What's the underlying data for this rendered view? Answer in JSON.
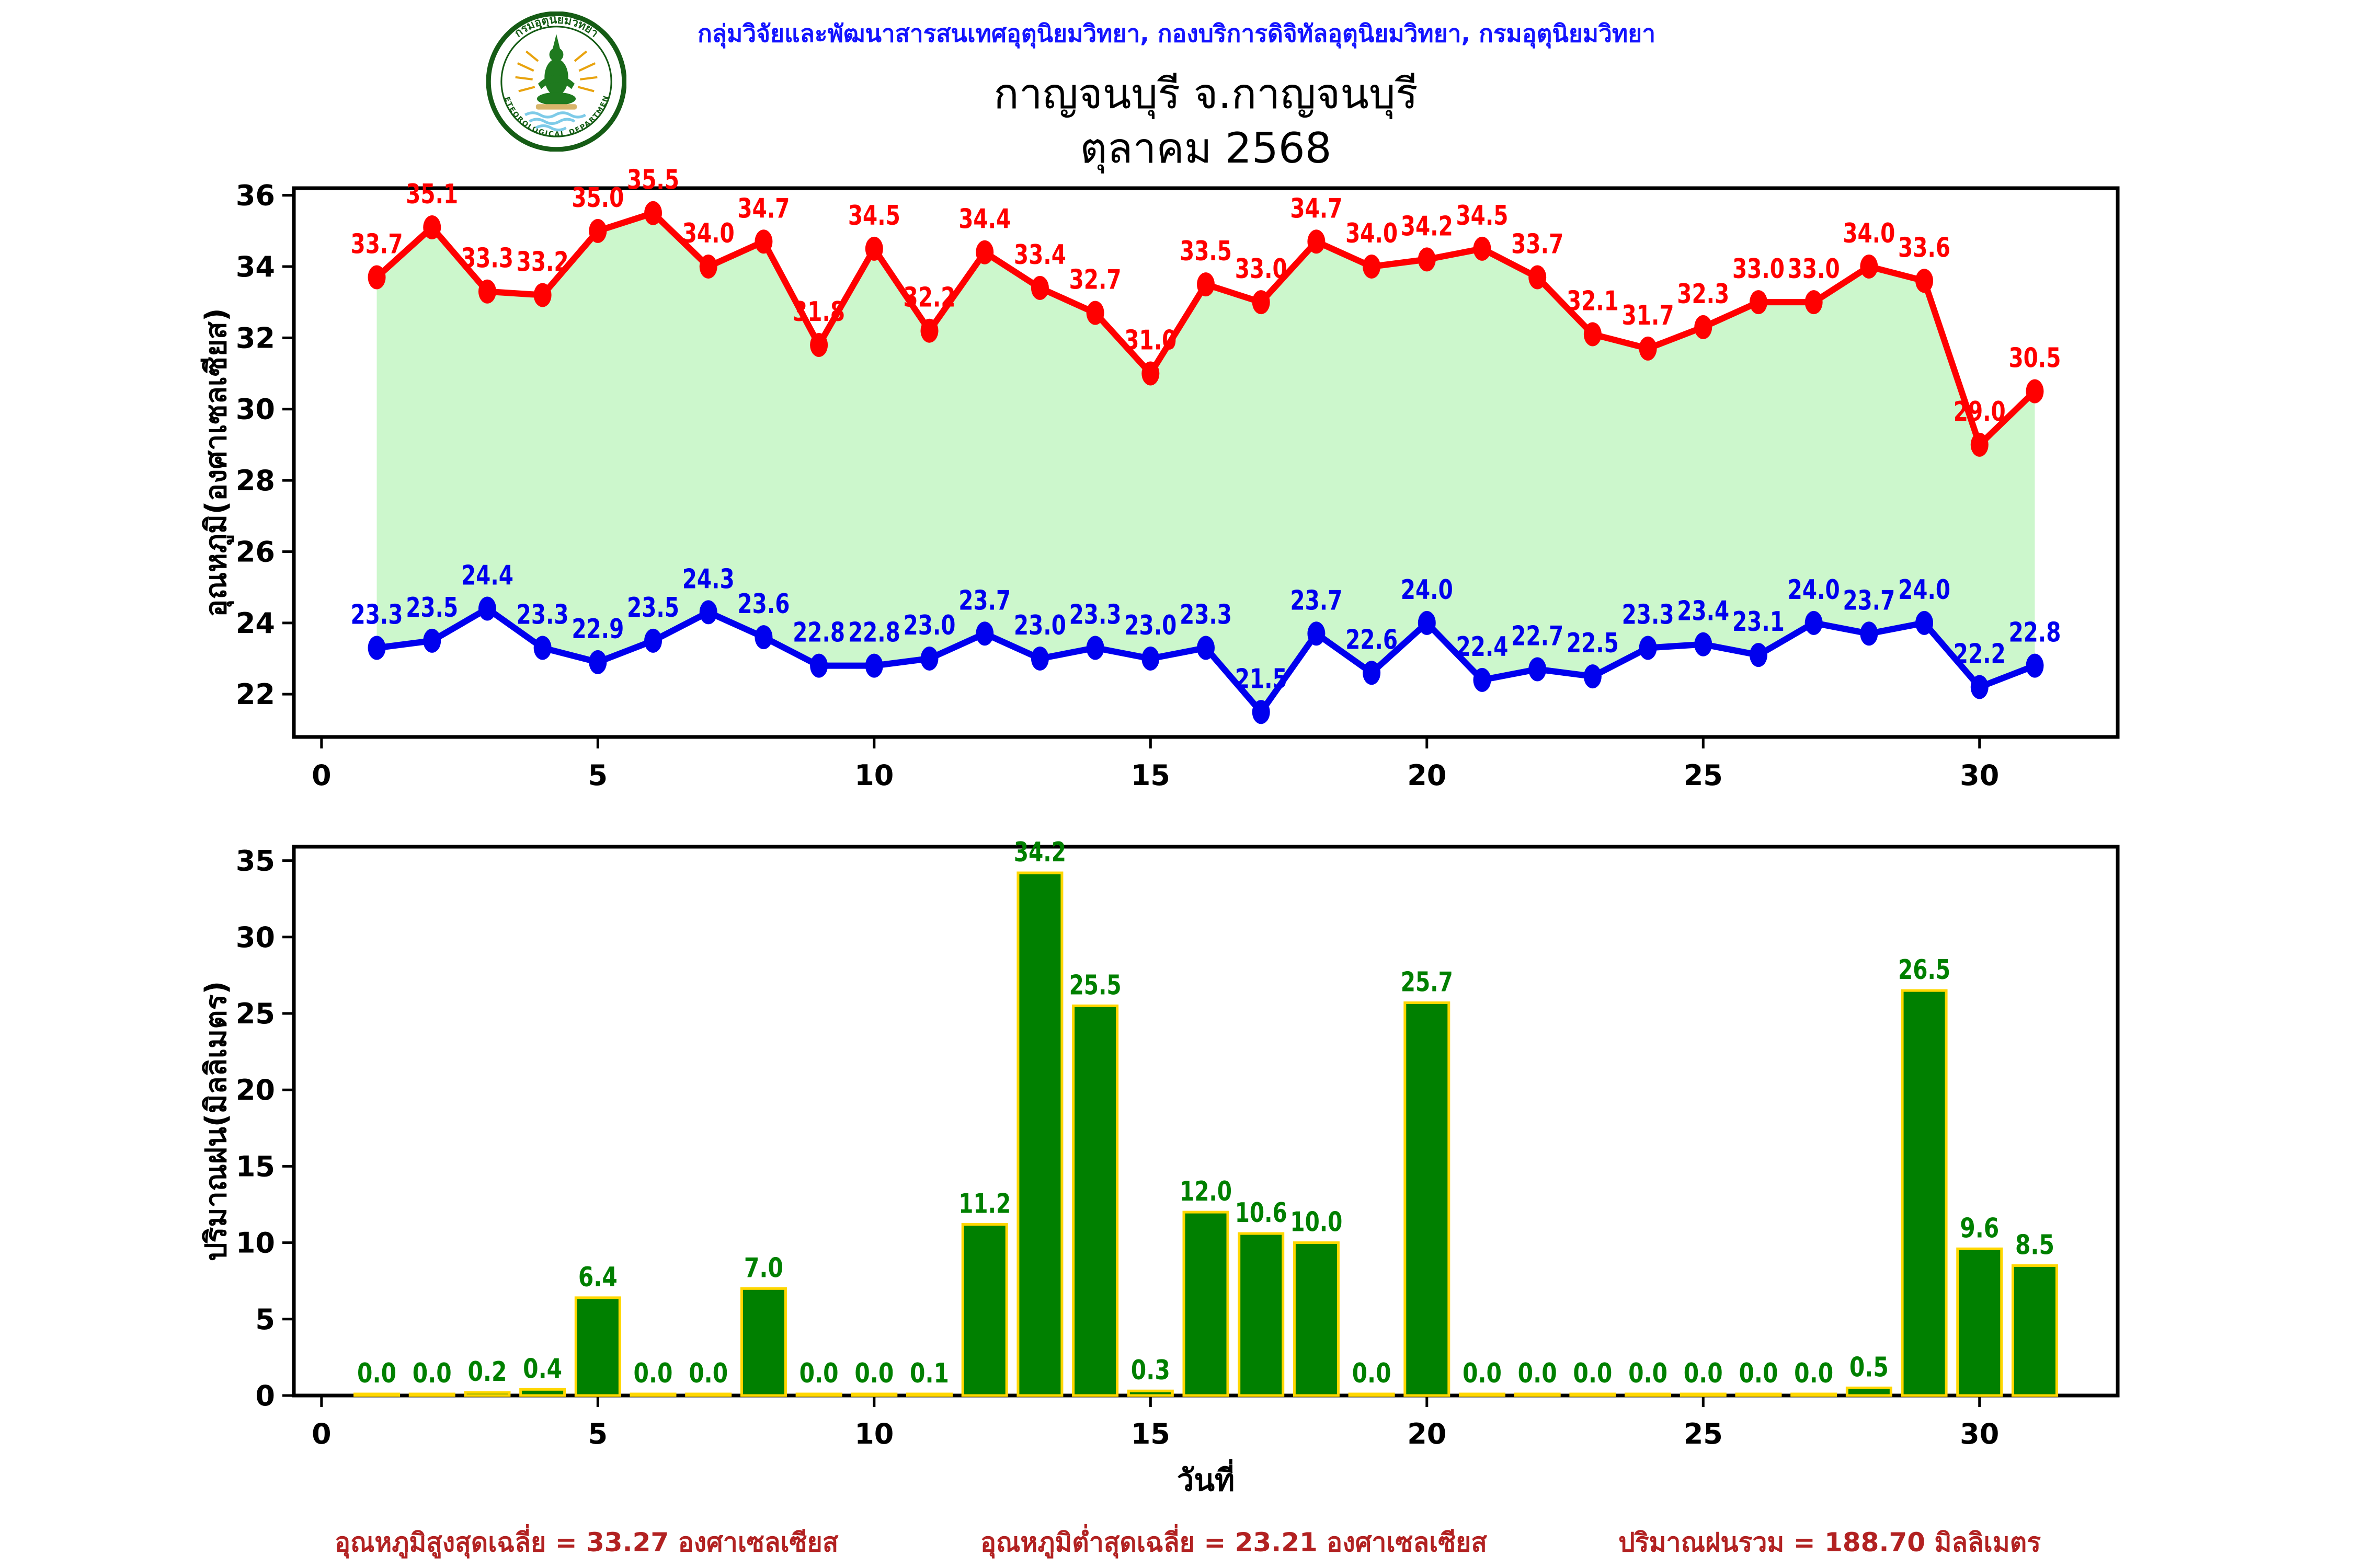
{
  "header": {
    "agency_line": "กลุ่มวิจัยและพัฒนาสารสนเทศอุตุนิยมวิทยา, กองบริการดิจิทัลอุตุนิยมวิทยา, กรมอุตุนิยมวิทยา",
    "title": "กาญจนบุรี จ.กาญจนบุรี",
    "subtitle": "ตุลาคม 2568",
    "logo": {
      "top_text": "กรมอุตุนิยมวิทยา",
      "bottom_text": "METEOROLOGICAL DEPARTMENT"
    }
  },
  "colors": {
    "header_text": "#1414ff",
    "max_line": "#ff0000",
    "min_line": "#0000ee",
    "range_fill": "#ccf7cc",
    "bar_fill": "#008000",
    "bar_edge": "#ffd700",
    "bar_label": "#008000",
    "footer_text": "#b22222",
    "axis": "#000000"
  },
  "chart_data": [
    {
      "type": "line",
      "x": [
        1,
        2,
        3,
        4,
        5,
        6,
        7,
        8,
        9,
        10,
        11,
        12,
        13,
        14,
        15,
        16,
        17,
        18,
        19,
        20,
        21,
        22,
        23,
        24,
        25,
        26,
        27,
        28,
        29,
        30,
        31
      ],
      "series": [
        {
          "name": "max-temperature",
          "color": "#ff0000",
          "values": [
            33.7,
            35.1,
            33.3,
            33.2,
            35.0,
            35.5,
            34.0,
            34.7,
            31.8,
            34.5,
            32.2,
            34.4,
            33.4,
            32.7,
            31.0,
            33.5,
            33.0,
            34.7,
            34.0,
            34.2,
            34.5,
            33.7,
            32.1,
            31.7,
            32.3,
            33.0,
            33.0,
            34.0,
            33.6,
            29.0,
            30.5
          ]
        },
        {
          "name": "min-temperature",
          "color": "#0000ee",
          "values": [
            23.3,
            23.5,
            24.4,
            23.3,
            22.9,
            23.5,
            24.3,
            23.6,
            22.8,
            22.8,
            23.0,
            23.7,
            23.0,
            23.3,
            23.0,
            23.3,
            21.5,
            23.7,
            22.6,
            24.0,
            22.4,
            22.7,
            22.5,
            23.3,
            23.4,
            23.1,
            24.0,
            23.7,
            24.0,
            22.2,
            22.8
          ]
        }
      ],
      "fill_between": "#ccf7cc",
      "title": "",
      "xlabel": "",
      "ylabel": "อุณหภูมิ(องศาเซลเซียส)",
      "yticks": [
        22,
        24,
        26,
        28,
        30,
        32,
        34,
        36
      ],
      "xticks": [
        0,
        5,
        10,
        15,
        20,
        25,
        30
      ],
      "ylim": [
        20.8,
        36.2
      ],
      "xlim": [
        -0.5,
        32.5
      ],
      "grid": false,
      "legend": "none",
      "label_format": "1dp"
    },
    {
      "type": "bar",
      "x": [
        1,
        2,
        3,
        4,
        5,
        6,
        7,
        8,
        9,
        10,
        11,
        12,
        13,
        14,
        15,
        16,
        17,
        18,
        19,
        20,
        21,
        22,
        23,
        24,
        25,
        26,
        27,
        28,
        29,
        30,
        31
      ],
      "values": [
        0.0,
        0.0,
        0.2,
        0.4,
        6.4,
        0.0,
        0.0,
        7.0,
        0.0,
        0.0,
        0.1,
        11.2,
        34.2,
        25.5,
        0.3,
        12.0,
        10.6,
        10.0,
        0.0,
        25.7,
        0.0,
        0.0,
        0.0,
        0.0,
        0.0,
        0.0,
        0.0,
        0.5,
        26.5,
        9.6,
        8.5
      ],
      "title": "",
      "xlabel": "วันที่",
      "ylabel": "ปริมาณฝน(มิลลิเมตร)",
      "yticks": [
        0,
        5,
        10,
        15,
        20,
        25,
        30,
        35
      ],
      "xticks": [
        0,
        5,
        10,
        15,
        20,
        25,
        30
      ],
      "ylim": [
        0,
        35.91
      ],
      "xlim": [
        -0.5,
        32.5
      ],
      "grid": false,
      "legend": "none",
      "label_format": "1dp"
    }
  ],
  "footer": {
    "max_avg": "อุณหภูมิสูงสุดเฉลี่ย = 33.27 องศาเซลเซียส",
    "min_avg": "อุณหภูมิต่ำสุดเฉลี่ย = 23.21 องศาเซลเซียส",
    "rain_total": "ปริมาณฝนรวม = 188.70 มิลลิเมตร"
  }
}
